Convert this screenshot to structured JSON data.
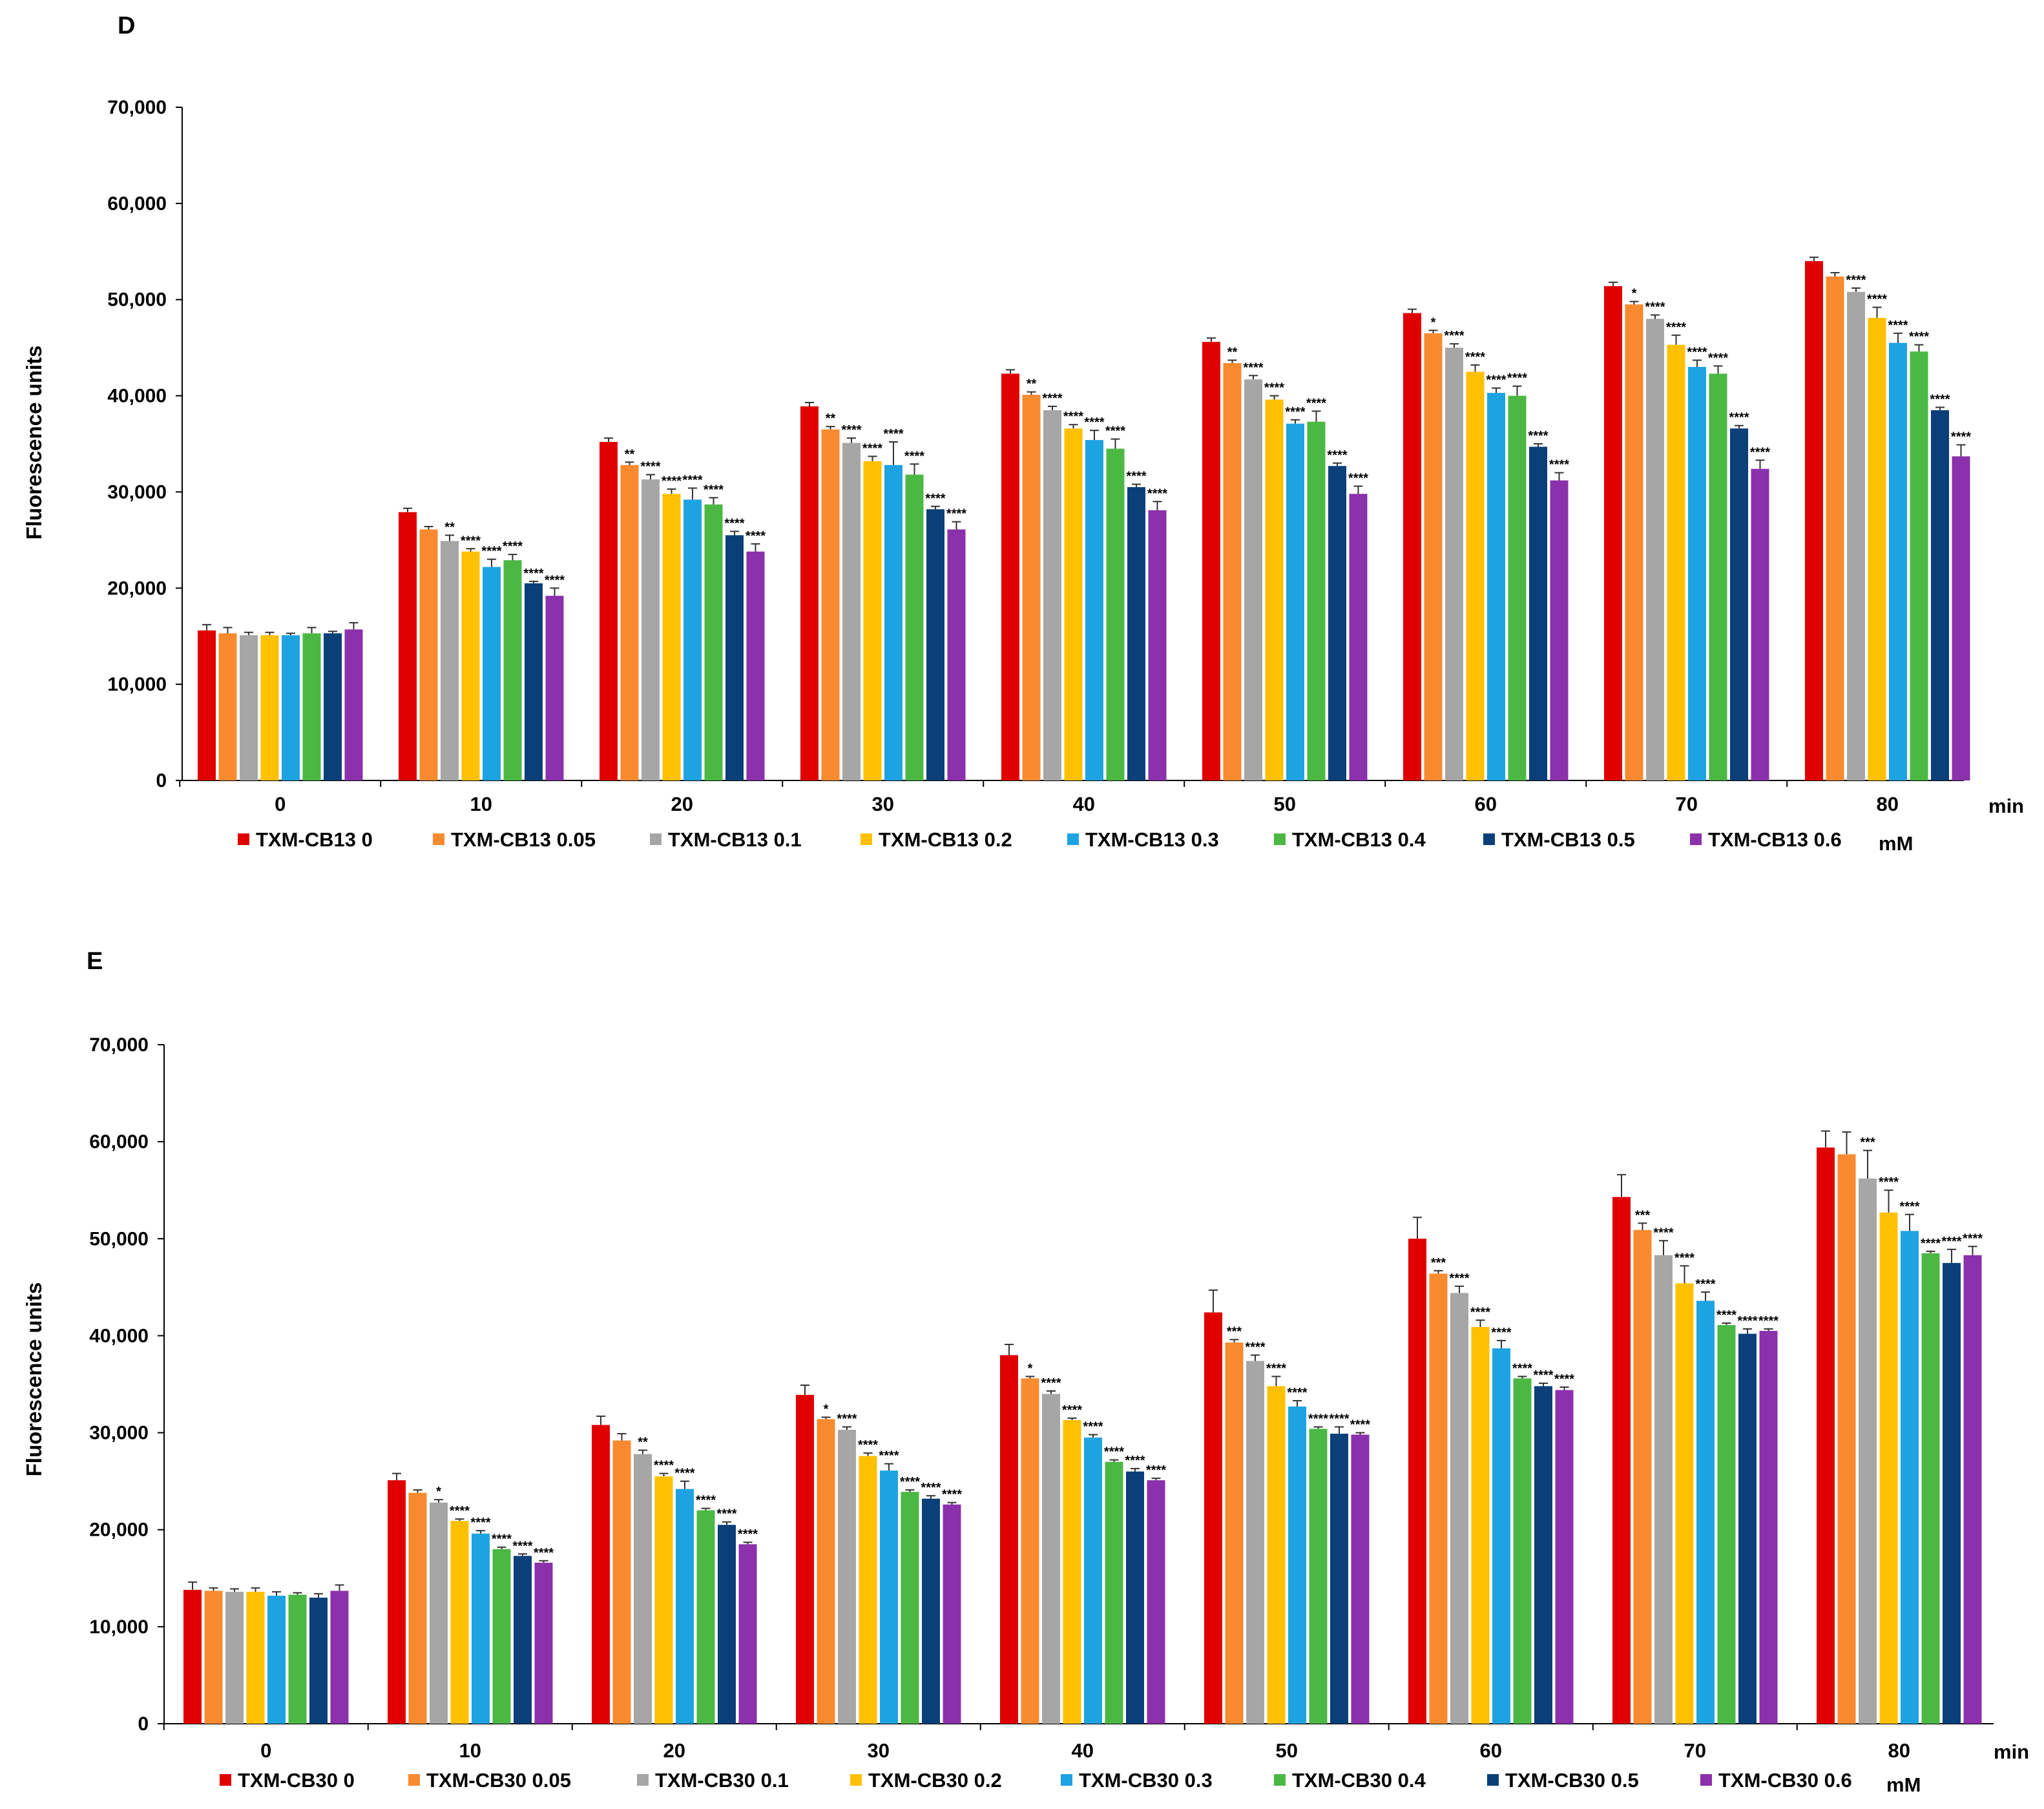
{
  "colors": [
    "#e00000",
    "#f98a2f",
    "#a6a6a6",
    "#ffc000",
    "#1ea3e2",
    "#4bb844",
    "#0a3f7a",
    "#8b31ab"
  ],
  "chart_data": [
    {
      "type": "bar",
      "panel": "D",
      "ylabel": "Fluorescence units",
      "xunit": "min",
      "legend_unit": "mM",
      "ylim": [
        0,
        70000
      ],
      "yticks": [
        0,
        10000,
        20000,
        30000,
        40000,
        50000,
        60000,
        70000
      ],
      "ytick_labels": [
        "0",
        "10,000",
        "20,000",
        "30,000",
        "40,000",
        "50,000",
        "60,000",
        "70,000"
      ],
      "categories": [
        "0",
        "10",
        "20",
        "30",
        "40",
        "50",
        "60",
        "70",
        "80"
      ],
      "series": [
        {
          "name": "TXM-CB13 0",
          "values": [
            15600,
            27900,
            35200,
            38900,
            42300,
            45600,
            48600,
            51400,
            54000
          ],
          "errors": [
            600,
            400,
            400,
            400,
            400,
            400,
            400,
            400,
            400
          ],
          "sig": [
            "",
            "",
            "",
            "",
            "",
            "",
            "",
            "",
            ""
          ]
        },
        {
          "name": "TXM-CB13 0.05",
          "values": [
            15300,
            26100,
            32800,
            36500,
            40100,
            43400,
            46500,
            49500,
            52400
          ],
          "errors": [
            600,
            300,
            300,
            300,
            300,
            300,
            300,
            300,
            400
          ],
          "sig": [
            "",
            "",
            "**",
            "**",
            "**",
            "**",
            "*",
            "*",
            ""
          ]
        },
        {
          "name": "TXM-CB13 0.1",
          "values": [
            15100,
            24900,
            31300,
            35100,
            38500,
            41700,
            45000,
            48000,
            50800
          ],
          "errors": [
            300,
            600,
            500,
            500,
            400,
            400,
            400,
            400,
            400
          ],
          "sig": [
            "",
            "**",
            "****",
            "****",
            "****",
            "****",
            "****",
            "****",
            "****"
          ]
        },
        {
          "name": "TXM-CB13 0.2",
          "values": [
            15100,
            23800,
            29800,
            33200,
            36600,
            39600,
            42500,
            45300,
            48100
          ],
          "errors": [
            300,
            300,
            500,
            500,
            400,
            400,
            700,
            1000,
            1100
          ],
          "sig": [
            "",
            "****",
            "****",
            "****",
            "****",
            "****",
            "****",
            "****",
            "****"
          ]
        },
        {
          "name": "TXM-CB13 0.3",
          "values": [
            15100,
            22200,
            29200,
            32800,
            35400,
            37100,
            40300,
            43000,
            45500
          ],
          "errors": [
            200,
            800,
            1200,
            2400,
            1000,
            400,
            500,
            700,
            1000
          ],
          "sig": [
            "",
            "****",
            "****",
            "****",
            "****",
            "****",
            "****",
            "****",
            "****"
          ]
        },
        {
          "name": "TXM-CB13 0.4",
          "values": [
            15300,
            22900,
            28700,
            31800,
            34500,
            37300,
            40000,
            42300,
            44600
          ],
          "errors": [
            600,
            600,
            700,
            1100,
            1000,
            1100,
            1000,
            800,
            700
          ],
          "sig": [
            "",
            "****",
            "****",
            "****",
            "****",
            "****",
            "****",
            "****",
            "****"
          ]
        },
        {
          "name": "TXM-CB13 0.5",
          "values": [
            15300,
            20500,
            25500,
            28200,
            30500,
            32700,
            34700,
            36600,
            38500
          ],
          "errors": [
            200,
            200,
            400,
            300,
            300,
            300,
            300,
            300,
            300
          ],
          "sig": [
            "",
            "****",
            "****",
            "****",
            "****",
            "****",
            "****",
            "****",
            "****"
          ]
        },
        {
          "name": "TXM-CB13 0.6",
          "values": [
            15700,
            19200,
            23800,
            26100,
            28100,
            29800,
            31200,
            32400,
            33700
          ],
          "errors": [
            700,
            800,
            800,
            800,
            900,
            800,
            800,
            900,
            1200
          ],
          "sig": [
            "",
            "****",
            "****",
            "****",
            "****",
            "****",
            "****",
            "****",
            "****"
          ]
        }
      ]
    },
    {
      "type": "bar",
      "panel": "E",
      "ylabel": "Fluorescence units",
      "xunit": "min",
      "legend_unit": "mM",
      "ylim": [
        0,
        70000
      ],
      "yticks": [
        0,
        10000,
        20000,
        30000,
        40000,
        50000,
        60000,
        70000
      ],
      "ytick_labels": [
        "0",
        "10,000",
        "20,000",
        "30,000",
        "40,000",
        "50,000",
        "60,000",
        "70,000"
      ],
      "categories": [
        "0",
        "10",
        "20",
        "30",
        "40",
        "50",
        "60",
        "70",
        "80"
      ],
      "series": [
        {
          "name": "TXM-CB30 0",
          "values": [
            13800,
            25100,
            30800,
            33900,
            38000,
            42400,
            50000,
            54300,
            59400
          ],
          "errors": [
            800,
            700,
            900,
            1000,
            1100,
            2300,
            2200,
            2300,
            1700
          ],
          "sig": [
            "",
            "",
            "",
            "",
            "",
            "",
            "",
            "",
            ""
          ]
        },
        {
          "name": "TXM-CB30 0.05",
          "values": [
            13700,
            23800,
            29200,
            31400,
            35600,
            39300,
            46400,
            50900,
            58700
          ],
          "errors": [
            300,
            300,
            700,
            200,
            200,
            300,
            300,
            700,
            2300
          ],
          "sig": [
            "",
            "",
            "",
            "*",
            "*",
            "***",
            "***",
            "***",
            ""
          ]
        },
        {
          "name": "TXM-CB30 0.1",
          "values": [
            13600,
            22800,
            27800,
            30300,
            34000,
            37400,
            44400,
            48300,
            56200
          ],
          "errors": [
            300,
            300,
            400,
            300,
            300,
            600,
            700,
            1500,
            2900
          ],
          "sig": [
            "",
            "*",
            "**",
            "****",
            "****",
            "****",
            "****",
            "****",
            "***"
          ]
        },
        {
          "name": "TXM-CB30 0.2",
          "values": [
            13600,
            20900,
            25500,
            27600,
            31300,
            34800,
            40900,
            45400,
            52700
          ],
          "errors": [
            400,
            200,
            300,
            300,
            200,
            1000,
            700,
            1800,
            2300
          ],
          "sig": [
            "",
            "****",
            "****",
            "****",
            "****",
            "****",
            "****",
            "****",
            "****"
          ]
        },
        {
          "name": "TXM-CB30 0.3",
          "values": [
            13200,
            19600,
            24200,
            26100,
            29500,
            32700,
            38700,
            43600,
            50800
          ],
          "errors": [
            400,
            300,
            800,
            700,
            300,
            600,
            800,
            900,
            1700
          ],
          "sig": [
            "",
            "****",
            "****",
            "****",
            "****",
            "****",
            "****",
            "****",
            "****"
          ]
        },
        {
          "name": "TXM-CB30 0.4",
          "values": [
            13300,
            18000,
            22000,
            23900,
            27000,
            30400,
            35600,
            41100,
            48500
          ],
          "errors": [
            200,
            200,
            200,
            200,
            200,
            200,
            200,
            200,
            200
          ],
          "sig": [
            "",
            "****",
            "****",
            "****",
            "****",
            "****",
            "****",
            "****",
            "****"
          ]
        },
        {
          "name": "TXM-CB30 0.5",
          "values": [
            13000,
            17300,
            20500,
            23200,
            26000,
            29900,
            34800,
            40200,
            47500
          ],
          "errors": [
            400,
            200,
            300,
            300,
            300,
            700,
            300,
            500,
            1400
          ],
          "sig": [
            "",
            "****",
            "****",
            "****",
            "****",
            "****",
            "****",
            "****",
            "****"
          ]
        },
        {
          "name": "TXM-CB30 0.6",
          "values": [
            13700,
            16600,
            18500,
            22600,
            25100,
            29800,
            34400,
            40500,
            48300
          ],
          "errors": [
            600,
            200,
            200,
            200,
            200,
            200,
            300,
            200,
            900
          ],
          "sig": [
            "",
            "****",
            "****",
            "****",
            "****",
            "****",
            "****",
            "****",
            "****"
          ]
        }
      ]
    }
  ]
}
